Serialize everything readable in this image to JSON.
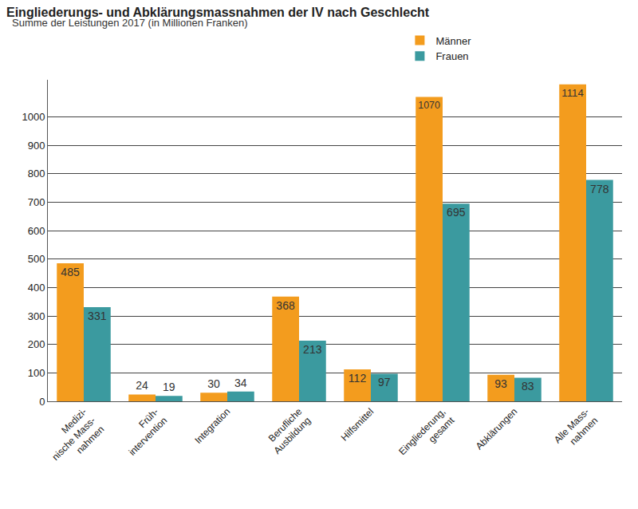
{
  "chart_data": {
    "type": "bar",
    "title": "Eingliederungs- und Abklärungsmassnahmen der IV nach Geschlecht",
    "subtitle": "Summe der Leistungen 2017 (in Millionen Franken)",
    "categories": [
      "Medizi-\nnische Mass-\nnahmen",
      "Früh-\nintervention",
      "Integration",
      "Berufliche\nAusbildung",
      "Hilfsmittel",
      "Eingliederung,\ngesamt",
      "Abklärungen",
      "Alle Mass-\nnahmen"
    ],
    "series": [
      {
        "name": "Männer",
        "color": "#f39c1e",
        "values": [
          485,
          24,
          30,
          368,
          112,
          1070,
          93,
          1114
        ]
      },
      {
        "name": "Frauen",
        "color": "#3b9a9f",
        "values": [
          331,
          19,
          34,
          213,
          97,
          695,
          83,
          778
        ]
      }
    ],
    "ylim": [
      0,
      1130
    ],
    "yticks": [
      0,
      100,
      200,
      300,
      400,
      500,
      600,
      700,
      800,
      900,
      1000
    ],
    "grid": true,
    "legend": "top",
    "data_labels": true
  }
}
